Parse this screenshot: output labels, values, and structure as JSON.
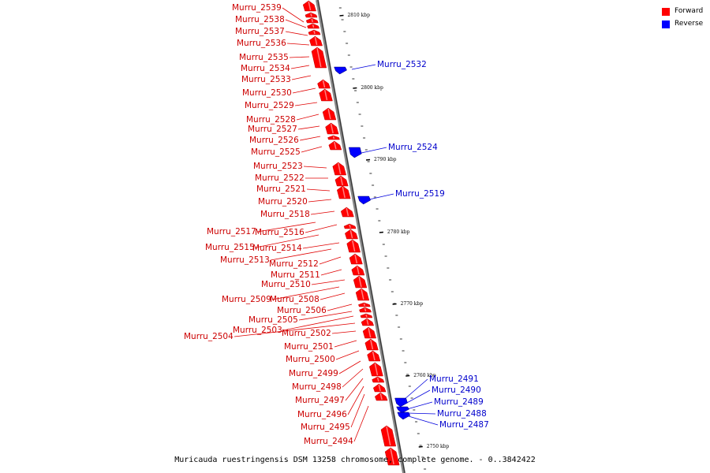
{
  "legend": {
    "forward_label": "Forward",
    "reverse_label": "Reverse",
    "forward_color": "#ff0000",
    "reverse_color": "#0000ff"
  },
  "caption": "Muricauda ruestringensis DSM 13258 chromosome, complete genome. - 0..3842422",
  "ruler_labels": [
    "2810 kbp",
    "2800 kbp",
    "2790 kbp",
    "2780 kbp",
    "2770 kbp",
    "2760 kbp",
    "2750 kbp"
  ],
  "forward_genes": [
    "Murru_2539",
    "Murru_2538",
    "Murru_2537",
    "Murru_2536",
    "Murru_2535",
    "Murru_2534",
    "Murru_2533",
    "Murru_2530",
    "Murru_2529",
    "Murru_2528",
    "Murru_2527",
    "Murru_2526",
    "Murru_2525",
    "Murru_2523",
    "Murru_2522",
    "Murru_2521",
    "Murru_2520",
    "Murru_2518",
    "Murru_2517",
    "Murru_2516",
    "Murru_2515",
    "Murru_2514",
    "Murru_2513",
    "Murru_2512",
    "Murru_2511",
    "Murru_2510",
    "Murru_2509",
    "Murru_2508",
    "Murru_2506",
    "Murru_2505",
    "Murru_2503",
    "Murru_2504",
    "Murru_2502",
    "Murru_2501",
    "Murru_2500",
    "Murru_2499",
    "Murru_2498",
    "Murru_2497",
    "Murru_2496",
    "Murru_2495",
    "Murru_2494"
  ],
  "reverse_genes": [
    "Murru_2532",
    "Murru_2524",
    "Murru_2519",
    "Murru_2491",
    "Murru_2490",
    "Murru_2489",
    "Murru_2488",
    "Murru_2487"
  ]
}
